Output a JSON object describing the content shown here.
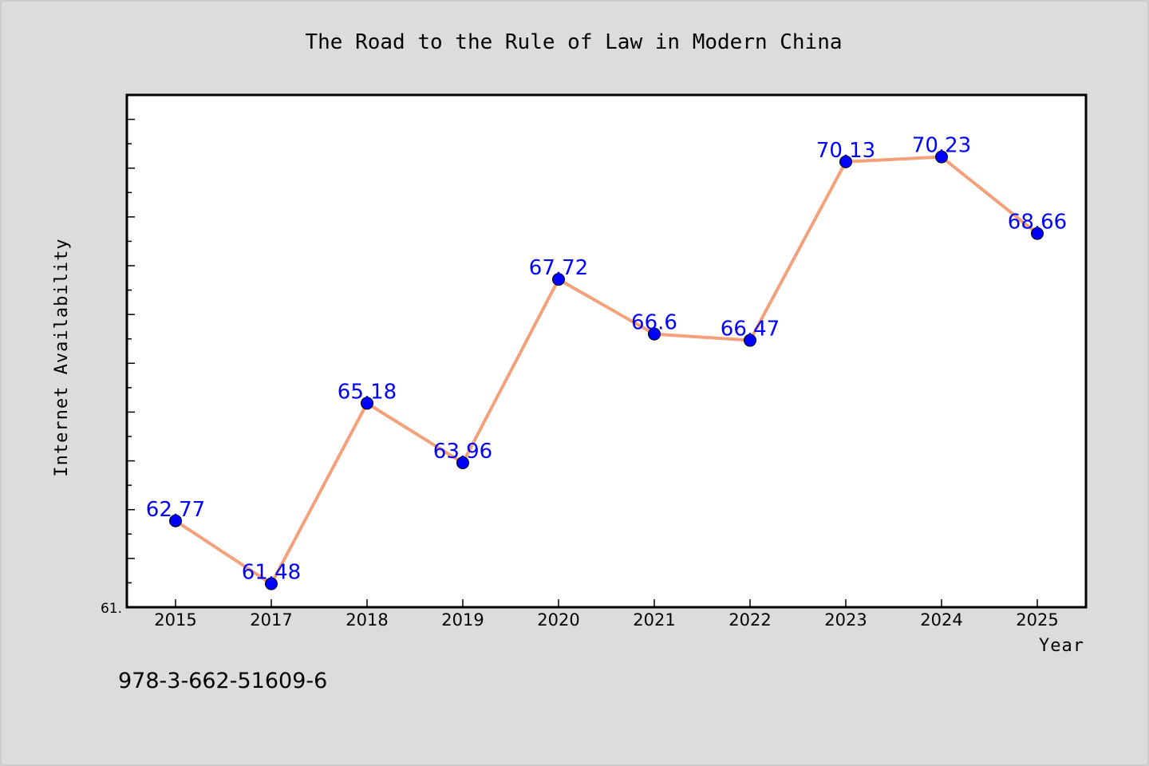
{
  "figure": {
    "isbn": "978-3-662-51609-6"
  },
  "chart_data": {
    "type": "line",
    "title": "The Road to the Rule of Law in Modern China",
    "xlabel": "Year",
    "ylabel": "Internet Availability",
    "categories": [
      "2015",
      "2017",
      "2018",
      "2019",
      "2020",
      "2021",
      "2022",
      "2023",
      "2024",
      "2025"
    ],
    "values": [
      62.77,
      61.48,
      65.18,
      63.96,
      67.72,
      66.6,
      66.47,
      70.13,
      70.23,
      68.66
    ],
    "data_labels": [
      "62.77",
      "61.48",
      "65.18",
      "63.96",
      "67.72",
      "66.6",
      "66.47",
      "70.13",
      "70.23",
      "68.66"
    ],
    "y_min_tick_label": "61.",
    "ylim": [
      61.0,
      71.5
    ],
    "grid": false,
    "legend": "none",
    "colors": {
      "line": "#f4a07a",
      "marker": "#0000ff",
      "data_label": "#0000ff",
      "plot_background": "#ffffff",
      "figure_background": "#dcdcdc"
    }
  }
}
